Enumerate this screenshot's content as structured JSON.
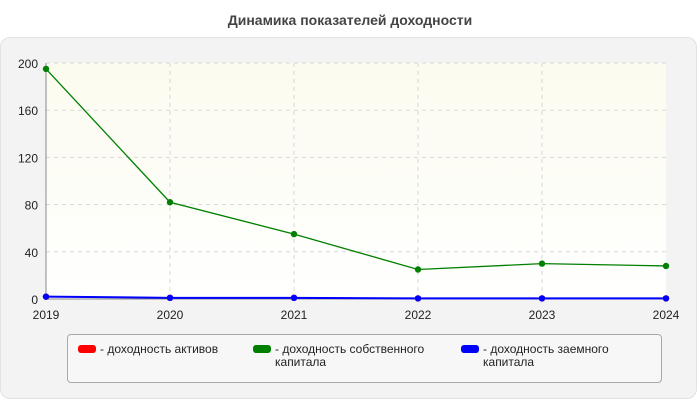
{
  "chart_data": {
    "type": "line",
    "title": "Динамика показателей доходности",
    "x": [
      "2019",
      "2020",
      "2021",
      "2022",
      "2023",
      "2024"
    ],
    "ylim": [
      0,
      200
    ],
    "yticks": [
      0,
      40,
      80,
      120,
      160,
      200
    ],
    "grid": true,
    "legend_position": "bottom",
    "series": [
      {
        "name": "- доходность активов",
        "color": "#ff0000",
        "values": [
          2,
          1,
          1,
          0.5,
          0.5,
          0.5
        ]
      },
      {
        "name": "- доходность собственного капитала",
        "color": "#008000",
        "values": [
          195,
          82,
          55,
          25,
          30,
          28
        ]
      },
      {
        "name": "- доходность заемного капитала",
        "color": "#0000ff",
        "values": [
          2,
          1,
          1,
          0.5,
          0.5,
          0.5
        ]
      }
    ]
  }
}
